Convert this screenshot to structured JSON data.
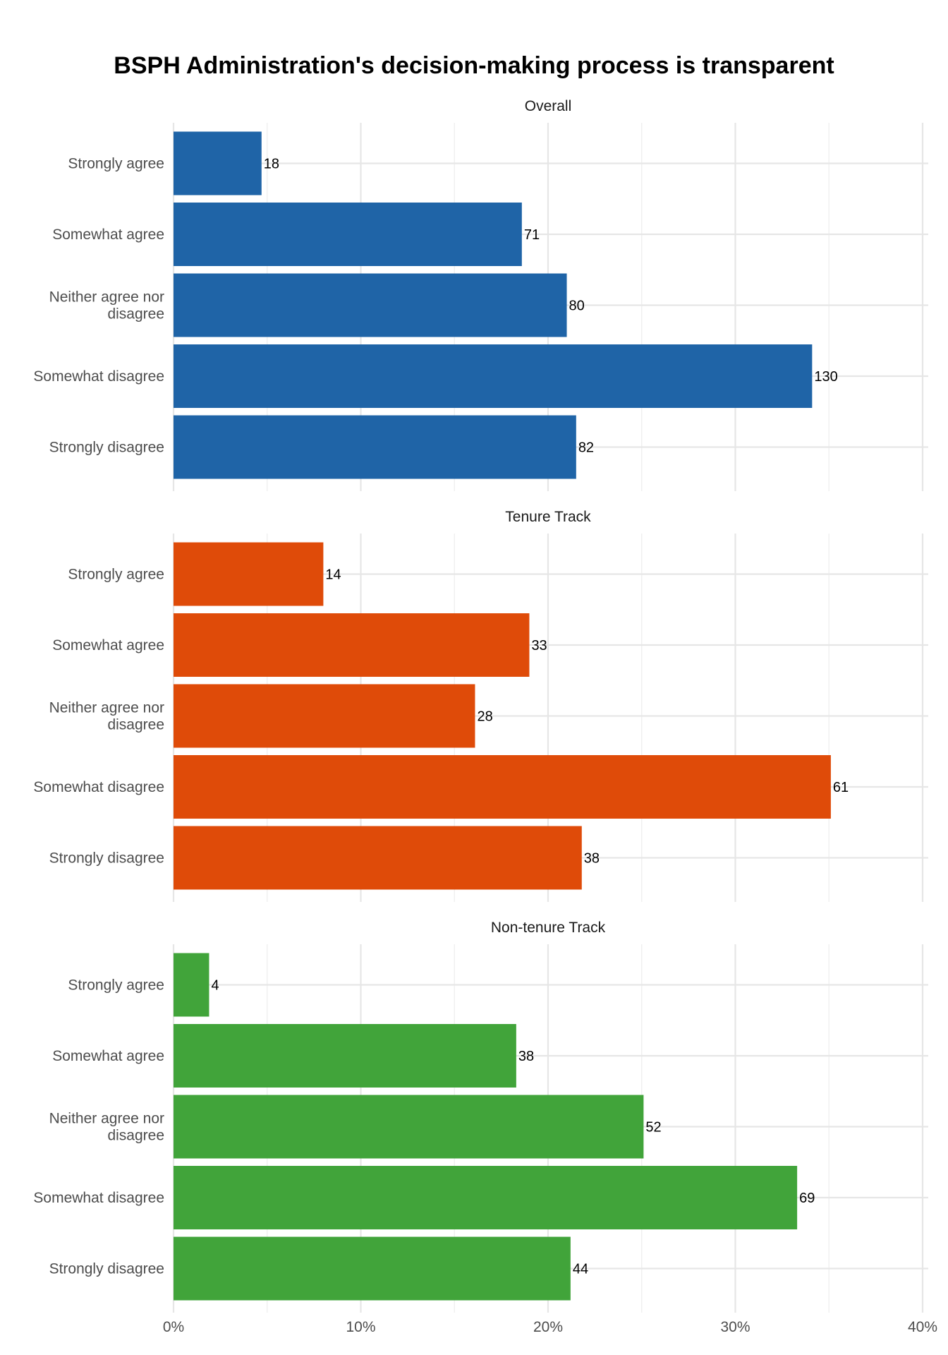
{
  "chart_data": {
    "type": "bar",
    "orientation": "horizontal",
    "title": "BSPH Administration's decision-making process is transparent",
    "xlabel": "",
    "ylabel": "",
    "xlim": [
      0,
      40
    ],
    "x_unit": "%",
    "x_ticks": [
      "0%",
      "10%",
      "20%",
      "30%",
      "40%"
    ],
    "grid": true,
    "legend": "none",
    "categories": [
      [
        "Strongly agree"
      ],
      [
        "Somewhat agree"
      ],
      [
        "Neither agree nor",
        "disagree"
      ],
      [
        "Somewhat disagree"
      ],
      [
        "Strongly disagree"
      ]
    ],
    "facets": [
      {
        "title": "Overall",
        "color": "#1f64a7",
        "counts": [
          18,
          71,
          80,
          130,
          82
        ],
        "percent_values": [
          4.7,
          18.6,
          21.0,
          34.1,
          21.5
        ]
      },
      {
        "title": "Tenure Track",
        "color": "#df4b09",
        "counts": [
          14,
          33,
          28,
          61,
          38
        ],
        "percent_values": [
          8.0,
          19.0,
          16.1,
          35.1,
          21.8
        ]
      },
      {
        "title": "Non-tenure Track",
        "color": "#41a43a",
        "counts": [
          4,
          38,
          52,
          69,
          44
        ],
        "percent_values": [
          1.9,
          18.3,
          25.1,
          33.3,
          21.2
        ]
      }
    ]
  }
}
